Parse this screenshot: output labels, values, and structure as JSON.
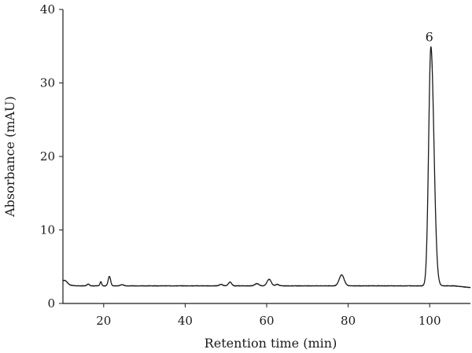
{
  "chart_data": {
    "type": "line",
    "title": "",
    "xlabel": "Retention time (min)",
    "ylabel": "Absorbance (mAU)",
    "xlim": [
      10,
      110
    ],
    "ylim": [
      0,
      40
    ],
    "xticks": [
      20,
      40,
      60,
      80,
      100
    ],
    "yticks": [
      0,
      10,
      20,
      30,
      40
    ],
    "grid": false,
    "legend": "none",
    "line_color": "#1a1a1a",
    "baseline": 2.4,
    "peaks": [
      {
        "x": 10.5,
        "height": 0.5,
        "width": 0.6
      },
      {
        "x": 16.2,
        "height": 0.25,
        "width": 0.3
      },
      {
        "x": 19.3,
        "height": 0.55,
        "width": 0.2
      },
      {
        "x": 21.4,
        "height": 1.3,
        "width": 0.3
      },
      {
        "x": 24.5,
        "height": 0.15,
        "width": 0.4
      },
      {
        "x": 48.8,
        "height": 0.2,
        "width": 0.4
      },
      {
        "x": 51.0,
        "height": 0.5,
        "width": 0.4
      },
      {
        "x": 57.6,
        "height": 0.3,
        "width": 0.5
      },
      {
        "x": 60.6,
        "height": 0.9,
        "width": 0.5
      },
      {
        "x": 62.6,
        "height": 0.2,
        "width": 0.4
      },
      {
        "x": 78.4,
        "height": 1.5,
        "width": 0.6
      },
      {
        "x": 100.3,
        "height": 32.5,
        "width": 0.55
      }
    ],
    "annotations": [
      {
        "text": "6",
        "x": 100.3,
        "y": 36.2
      }
    ]
  }
}
